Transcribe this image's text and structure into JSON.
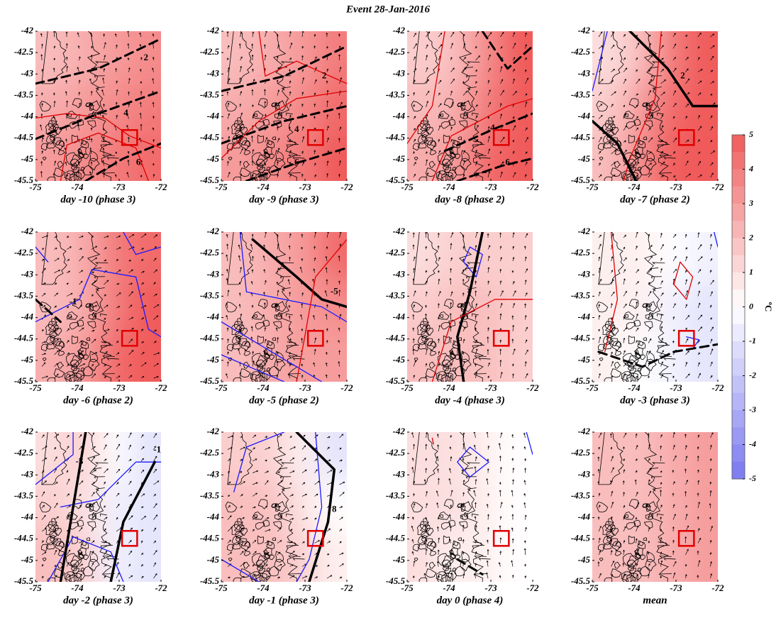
{
  "chart_data": {
    "type": "map",
    "title": "Event 28-Jan-2016",
    "xlim": [
      -75,
      -72
    ],
    "xticks": [
      -75,
      -74,
      -73,
      -72
    ],
    "ylim": [
      -45.5,
      -42
    ],
    "yticks": [
      -45.5,
      -45,
      -44.5,
      -44,
      -43.5,
      -43,
      -42.5,
      -42
    ],
    "colorbar": {
      "clim": [
        -5,
        5
      ],
      "ticks": [
        5,
        4,
        3,
        2,
        1,
        0,
        -1,
        -2,
        -3,
        -4,
        -5
      ],
      "label": "ºC",
      "colors": {
        "min": "#7878f0",
        "mid": "#ffffff",
        "max": "#f05a5a"
      }
    },
    "panels": [
      {
        "label": "day -10 (phase 3)",
        "field": [
          [
            2,
            2.5,
            3,
            3.5
          ],
          [
            2.5,
            3,
            3.5,
            4
          ],
          [
            3,
            3.5,
            4,
            4.5
          ]
        ],
        "contour_labels": [
          2,
          4,
          6
        ]
      },
      {
        "label": "day -9 (phase 3)",
        "field": [
          [
            2,
            2.5,
            3,
            4
          ],
          [
            2.5,
            3,
            3.5,
            4.5
          ],
          [
            3,
            3.5,
            4,
            5
          ]
        ],
        "contour_labels": [
          2,
          4,
          6
        ]
      },
      {
        "label": "day -8 (phase 2)",
        "field": [
          [
            1.5,
            2,
            3.5,
            5
          ],
          [
            2,
            2.5,
            4,
            5
          ],
          [
            2.5,
            3,
            4.5,
            5
          ]
        ],
        "contour_labels": [
          4,
          6
        ]
      },
      {
        "label": "day -7 (phase 2)",
        "field": [
          [
            1,
            2,
            4,
            5
          ],
          [
            1.5,
            3,
            4.5,
            5
          ],
          [
            2,
            3.5,
            5,
            5
          ]
        ],
        "contour_labels": [
          2
        ]
      },
      {
        "label": "day -6 (phase 2)",
        "field": [
          [
            2,
            2.5,
            4,
            4.5
          ],
          [
            2,
            2.5,
            4,
            5
          ],
          [
            2.5,
            3,
            4.5,
            5
          ]
        ],
        "contour_labels": [
          -1
        ]
      },
      {
        "label": "day -5 (phase 2)",
        "field": [
          [
            2,
            2.5,
            3,
            4.5
          ],
          [
            2,
            2.5,
            3,
            3.5
          ],
          [
            2,
            2.5,
            3,
            3
          ]
        ],
        "contour_labels": [
          -5
        ]
      },
      {
        "label": "day -4 (phase 3)",
        "field": [
          [
            1,
            1.5,
            1.5,
            1.5
          ],
          [
            1.5,
            2,
            2,
            1.5
          ],
          [
            2,
            2,
            2,
            1.5
          ]
        ],
        "contour_labels": []
      },
      {
        "label": "day -3 (phase 3)",
        "field": [
          [
            0.5,
            0.5,
            0,
            -0.5
          ],
          [
            0.5,
            0.5,
            -0.5,
            -1
          ],
          [
            0.5,
            0,
            -0.5,
            -1
          ]
        ],
        "contour_labels": []
      },
      {
        "label": "day -2 (phase 3)",
        "field": [
          [
            1,
            1.5,
            0,
            -1
          ],
          [
            1.5,
            1,
            -0.5,
            -1
          ],
          [
            2,
            1.5,
            -0.5,
            -1
          ]
        ],
        "contour_labels": [
          -3,
          -1
        ]
      },
      {
        "label": "day -1 (phase 3)",
        "field": [
          [
            1.5,
            1.5,
            0.5,
            -1
          ],
          [
            2,
            2,
            1,
            0
          ],
          [
            2,
            2,
            1.5,
            0.5
          ]
        ],
        "contour_labels": [
          8
        ]
      },
      {
        "label": "day 0 (phase 4)",
        "field": [
          [
            1,
            1,
            0.5,
            0
          ],
          [
            1,
            1,
            0.5,
            0
          ],
          [
            1,
            0.5,
            0.5,
            0
          ]
        ],
        "contour_labels": []
      },
      {
        "label": "mean",
        "field": [
          [
            2,
            2,
            2.5,
            3
          ],
          [
            2,
            2,
            2.5,
            3
          ],
          [
            2,
            2,
            2.5,
            3
          ]
        ],
        "contour_labels": []
      }
    ]
  }
}
